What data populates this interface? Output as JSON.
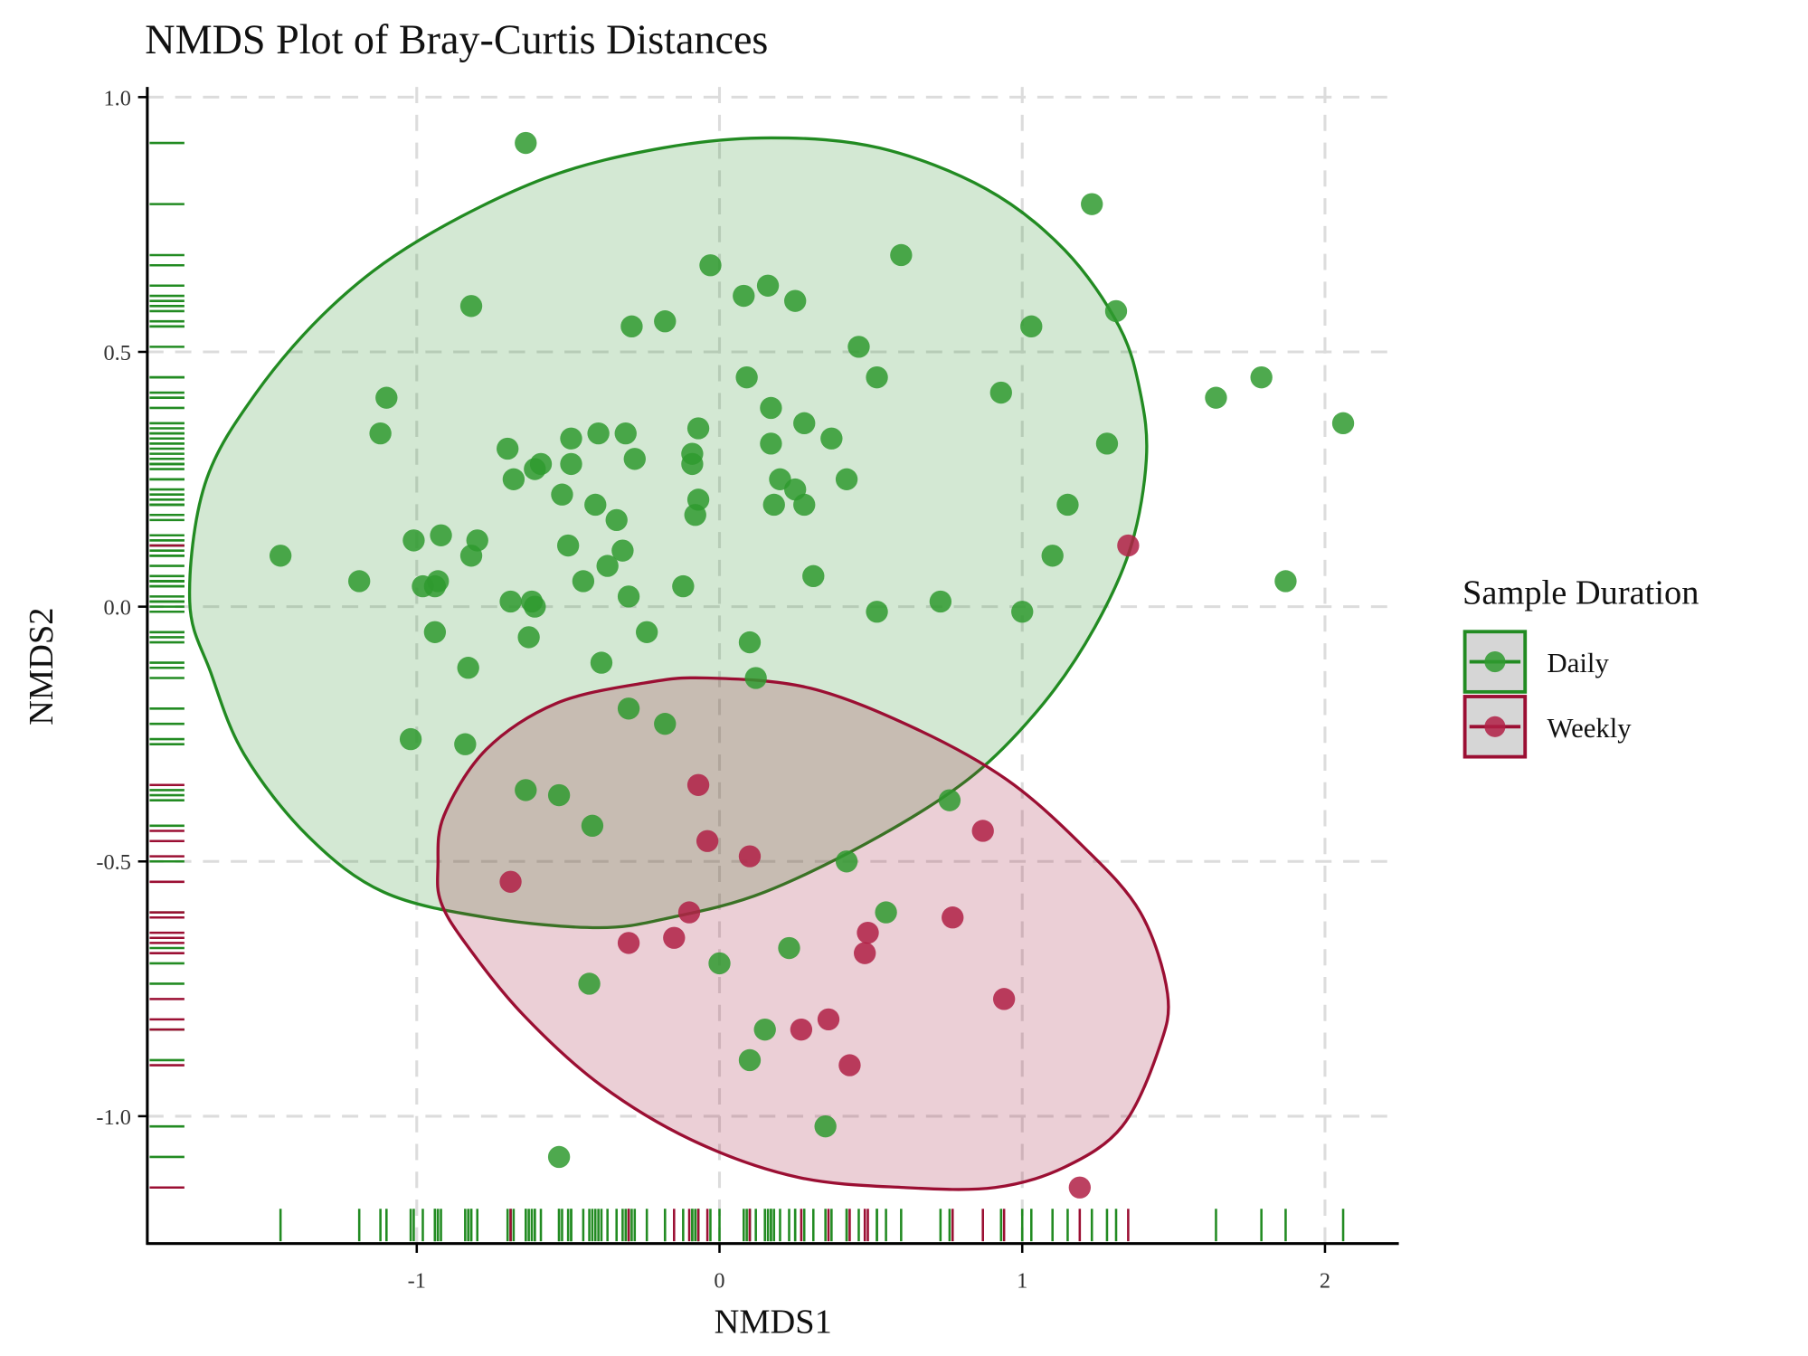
{
  "chart_data": {
    "type": "scatter",
    "title": "NMDS Plot of Bray-Curtis Distances",
    "xlabel": "NMDS1",
    "ylabel": "NMDS2",
    "xlim": [
      -1.89,
      2.24
    ],
    "ylim": [
      -1.25,
      1.02
    ],
    "xticks": [
      -1,
      0,
      1,
      2
    ],
    "xtick_labels": [
      "-1",
      "0",
      "1",
      "2"
    ],
    "yticks": [
      1.0,
      0.5,
      0.0,
      -0.5,
      -1.0
    ],
    "ytick_labels": [
      "1.0",
      "0.5",
      "0.0",
      "-0.5",
      "-1.0"
    ],
    "grid": true,
    "legend": {
      "title": "Sample Duration",
      "placement": "right",
      "entries": [
        "Daily",
        "Weekly"
      ]
    },
    "series": [
      {
        "name": "Daily",
        "color": "#228b22",
        "point_color": "#2f9a2f",
        "ellipse_fill": "#d4ead4",
        "points": [
          [
            -0.64,
            0.91
          ],
          [
            1.23,
            0.79
          ],
          [
            0.6,
            0.69
          ],
          [
            -0.03,
            0.67
          ],
          [
            0.16,
            0.63
          ],
          [
            0.08,
            0.61
          ],
          [
            0.25,
            0.6
          ],
          [
            -0.82,
            0.59
          ],
          [
            1.31,
            0.58
          ],
          [
            -0.18,
            0.56
          ],
          [
            -0.29,
            0.55
          ],
          [
            1.03,
            0.55
          ],
          [
            0.46,
            0.51
          ],
          [
            0.09,
            0.45
          ],
          [
            0.52,
            0.45
          ],
          [
            1.79,
            0.45
          ],
          [
            0.93,
            0.42
          ],
          [
            1.64,
            0.41
          ],
          [
            -1.1,
            0.41
          ],
          [
            0.17,
            0.39
          ],
          [
            2.06,
            0.36
          ],
          [
            -0.07,
            0.35
          ],
          [
            0.28,
            0.36
          ],
          [
            -1.12,
            0.34
          ],
          [
            -0.4,
            0.34
          ],
          [
            -0.31,
            0.34
          ],
          [
            0.37,
            0.33
          ],
          [
            -0.49,
            0.33
          ],
          [
            1.28,
            0.32
          ],
          [
            -0.7,
            0.31
          ],
          [
            0.17,
            0.32
          ],
          [
            -0.09,
            0.3
          ],
          [
            -0.28,
            0.29
          ],
          [
            -0.09,
            0.28
          ],
          [
            -0.59,
            0.28
          ],
          [
            -0.61,
            0.27
          ],
          [
            -0.49,
            0.28
          ],
          [
            -0.68,
            0.25
          ],
          [
            0.2,
            0.25
          ],
          [
            0.42,
            0.25
          ],
          [
            0.25,
            0.23
          ],
          [
            -0.52,
            0.22
          ],
          [
            -0.41,
            0.2
          ],
          [
            -0.07,
            0.21
          ],
          [
            0.18,
            0.2
          ],
          [
            0.28,
            0.2
          ],
          [
            1.15,
            0.2
          ],
          [
            -0.34,
            0.17
          ],
          [
            -0.08,
            0.18
          ],
          [
            -1.01,
            0.13
          ],
          [
            -0.92,
            0.14
          ],
          [
            -0.8,
            0.13
          ],
          [
            -0.5,
            0.12
          ],
          [
            -0.32,
            0.11
          ],
          [
            -1.45,
            0.1
          ],
          [
            -0.82,
            0.1
          ],
          [
            1.1,
            0.1
          ],
          [
            -0.37,
            0.08
          ],
          [
            -1.19,
            0.05
          ],
          [
            -0.93,
            0.05
          ],
          [
            -0.45,
            0.05
          ],
          [
            0.31,
            0.06
          ],
          [
            1.87,
            0.05
          ],
          [
            -0.98,
            0.04
          ],
          [
            -0.94,
            0.04
          ],
          [
            -0.12,
            0.04
          ],
          [
            -0.3,
            0.02
          ],
          [
            -0.69,
            0.01
          ],
          [
            -0.62,
            0.01
          ],
          [
            -0.61,
            0.0
          ],
          [
            0.73,
            0.01
          ],
          [
            0.52,
            -0.01
          ],
          [
            1.0,
            -0.01
          ],
          [
            -0.94,
            -0.05
          ],
          [
            -0.63,
            -0.06
          ],
          [
            -0.24,
            -0.05
          ],
          [
            0.1,
            -0.07
          ],
          [
            -0.39,
            -0.11
          ],
          [
            -0.83,
            -0.12
          ],
          [
            0.12,
            -0.14
          ],
          [
            -0.3,
            -0.2
          ],
          [
            -0.18,
            -0.23
          ],
          [
            -1.02,
            -0.26
          ],
          [
            -0.84,
            -0.27
          ],
          [
            -0.64,
            -0.36
          ],
          [
            -0.53,
            -0.37
          ],
          [
            0.76,
            -0.38
          ],
          [
            -0.42,
            -0.43
          ],
          [
            0.42,
            -0.5
          ],
          [
            0.55,
            -0.6
          ],
          [
            0.23,
            -0.67
          ],
          [
            0.0,
            -0.7
          ],
          [
            -0.43,
            -0.74
          ],
          [
            0.15,
            -0.83
          ],
          [
            0.1,
            -0.89
          ],
          [
            0.35,
            -1.02
          ],
          [
            -0.53,
            -1.08
          ]
        ],
        "ellipse": [
          [
            -1.75,
            0.01
          ],
          [
            -1.7,
            0.24
          ],
          [
            -1.53,
            0.42
          ],
          [
            -1.28,
            0.59
          ],
          [
            -0.99,
            0.72
          ],
          [
            -0.58,
            0.84
          ],
          [
            -0.19,
            0.9
          ],
          [
            0.17,
            0.92
          ],
          [
            0.53,
            0.9
          ],
          [
            0.88,
            0.82
          ],
          [
            1.14,
            0.7
          ],
          [
            1.32,
            0.55
          ],
          [
            1.39,
            0.42
          ],
          [
            1.41,
            0.29
          ],
          [
            1.36,
            0.12
          ],
          [
            1.24,
            -0.04
          ],
          [
            1.07,
            -0.19
          ],
          [
            0.84,
            -0.33
          ],
          [
            0.53,
            -0.45
          ],
          [
            0.15,
            -0.56
          ],
          [
            -0.16,
            -0.61
          ],
          [
            -0.4,
            -0.63
          ],
          [
            -0.77,
            -0.61
          ],
          [
            -1.11,
            -0.56
          ],
          [
            -1.36,
            -0.45
          ],
          [
            -1.57,
            -0.29
          ],
          [
            -1.68,
            -0.13
          ]
        ]
      },
      {
        "name": "Weekly",
        "color": "#9b0f33",
        "point_color": "#b02045",
        "ellipse_fill": "#ebcdd4",
        "points": [
          [
            1.35,
            0.12
          ],
          [
            -0.07,
            -0.35
          ],
          [
            0.87,
            -0.44
          ],
          [
            -0.04,
            -0.46
          ],
          [
            0.1,
            -0.49
          ],
          [
            -0.69,
            -0.54
          ],
          [
            -0.1,
            -0.6
          ],
          [
            0.77,
            -0.61
          ],
          [
            0.49,
            -0.64
          ],
          [
            -0.3,
            -0.66
          ],
          [
            -0.15,
            -0.65
          ],
          [
            0.48,
            -0.68
          ],
          [
            0.94,
            -0.77
          ],
          [
            0.36,
            -0.81
          ],
          [
            0.27,
            -0.83
          ],
          [
            0.43,
            -0.9
          ],
          [
            1.19,
            -1.14
          ]
        ],
        "ellipse": [
          [
            -0.93,
            -0.51
          ],
          [
            -0.91,
            -0.41
          ],
          [
            -0.77,
            -0.28
          ],
          [
            -0.54,
            -0.19
          ],
          [
            -0.25,
            -0.15
          ],
          [
            -0.04,
            -0.14
          ],
          [
            0.3,
            -0.16
          ],
          [
            0.65,
            -0.24
          ],
          [
            0.95,
            -0.34
          ],
          [
            1.2,
            -0.47
          ],
          [
            1.39,
            -0.6
          ],
          [
            1.48,
            -0.76
          ],
          [
            1.45,
            -0.87
          ],
          [
            1.33,
            -1.02
          ],
          [
            1.14,
            -1.1
          ],
          [
            0.91,
            -1.14
          ],
          [
            0.61,
            -1.14
          ],
          [
            0.26,
            -1.12
          ],
          [
            -0.08,
            -1.05
          ],
          [
            -0.39,
            -0.94
          ],
          [
            -0.65,
            -0.8
          ],
          [
            -0.84,
            -0.66
          ],
          [
            -0.92,
            -0.58
          ]
        ]
      }
    ]
  }
}
